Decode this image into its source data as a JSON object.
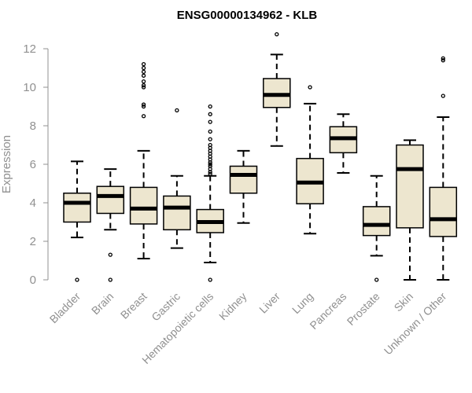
{
  "chart_data": {
    "type": "box",
    "title": "ENSG00000134962 - KLB",
    "xlabel": "",
    "ylabel": "Expression",
    "ylim": [
      0,
      12
    ],
    "yticks": [
      0,
      2,
      4,
      6,
      8,
      10,
      12
    ],
    "grid": false,
    "colors": {
      "box_fill": "#ede6cf",
      "box_stroke": "#000000",
      "median": "#000000",
      "axis": "#909090"
    },
    "categories": [
      "Bladder",
      "Brain",
      "Breast",
      "Gastric",
      "Hematopoietic cells",
      "Kidney",
      "Liver",
      "Lung",
      "Pancreas",
      "Prostate",
      "Skin",
      "Unknown / Other"
    ],
    "boxes": [
      {
        "category": "Bladder",
        "whisker_low": 2.2,
        "q1": 3.0,
        "median": 4.0,
        "q3": 4.5,
        "whisker_high": 6.15,
        "outliers": [
          0.0
        ]
      },
      {
        "category": "Brain",
        "whisker_low": 2.6,
        "q1": 3.45,
        "median": 4.35,
        "q3": 4.85,
        "whisker_high": 5.75,
        "outliers": [
          1.3,
          0.0
        ]
      },
      {
        "category": "Breast",
        "whisker_low": 1.1,
        "q1": 2.9,
        "median": 3.7,
        "q3": 4.8,
        "whisker_high": 6.7,
        "outliers": [
          8.5,
          9.0,
          9.1,
          10.0,
          10.1,
          10.3,
          10.6,
          10.8,
          11.0,
          11.2
        ]
      },
      {
        "category": "Gastric",
        "whisker_low": 1.65,
        "q1": 2.6,
        "median": 3.75,
        "q3": 4.35,
        "whisker_high": 5.4,
        "outliers": [
          8.8
        ]
      },
      {
        "category": "Hematopoietic cells",
        "whisker_low": 0.9,
        "q1": 2.45,
        "median": 3.0,
        "q3": 3.65,
        "whisker_high": 5.4,
        "outliers": [
          0.0,
          5.5,
          5.6,
          5.75,
          5.9,
          6.0,
          6.1,
          6.25,
          6.4,
          6.55,
          6.7,
          6.85,
          7.0,
          7.3,
          7.7,
          8.2,
          8.6,
          9.0
        ]
      },
      {
        "category": "Kidney",
        "whisker_low": 2.95,
        "q1": 4.5,
        "median": 5.45,
        "q3": 5.9,
        "whisker_high": 6.7,
        "outliers": []
      },
      {
        "category": "Liver",
        "whisker_low": 6.95,
        "q1": 8.95,
        "median": 9.6,
        "q3": 10.45,
        "whisker_high": 11.7,
        "outliers": [
          12.75
        ]
      },
      {
        "category": "Lung",
        "whisker_low": 2.4,
        "q1": 3.95,
        "median": 5.05,
        "q3": 6.3,
        "whisker_high": 9.15,
        "outliers": [
          10.0
        ]
      },
      {
        "category": "Pancreas",
        "whisker_low": 5.55,
        "q1": 6.6,
        "median": 7.35,
        "q3": 7.95,
        "whisker_high": 8.6,
        "outliers": []
      },
      {
        "category": "Prostate",
        "whisker_low": 1.25,
        "q1": 2.3,
        "median": 2.85,
        "q3": 3.8,
        "whisker_high": 5.4,
        "outliers": [
          0.0
        ]
      },
      {
        "category": "Skin",
        "whisker_low": 0.0,
        "q1": 2.7,
        "median": 5.75,
        "q3": 7.0,
        "whisker_high": 7.25,
        "outliers": []
      },
      {
        "category": "Unknown / Other",
        "whisker_low": 0.0,
        "q1": 2.25,
        "median": 3.15,
        "q3": 4.8,
        "whisker_high": 8.45,
        "outliers": [
          9.55,
          11.4,
          11.5
        ]
      }
    ]
  }
}
